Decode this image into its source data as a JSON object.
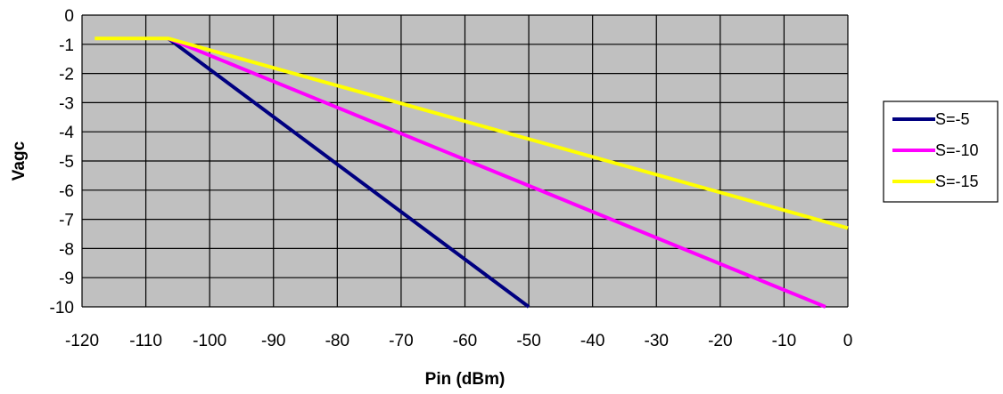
{
  "chart_data": {
    "type": "line",
    "title": "",
    "xlabel": "Pin (dBm)",
    "ylabel": "Vagc",
    "xlim": [
      -120,
      0
    ],
    "ylim": [
      -10,
      0
    ],
    "xticks": [
      -120,
      -110,
      -100,
      -90,
      -80,
      -70,
      -60,
      -50,
      -40,
      -30,
      -20,
      -10,
      0
    ],
    "yticks": [
      0,
      -1,
      -2,
      -3,
      -4,
      -5,
      -6,
      -7,
      -8,
      -9,
      -10
    ],
    "grid": true,
    "plot_background": "#c0c0c0",
    "legend_position": "right",
    "series": [
      {
        "name": "S=-5",
        "color": "#000080",
        "x": [
          -106.5,
          -50
        ],
        "y": [
          -0.8,
          -10
        ]
      },
      {
        "name": "S=-10",
        "color": "#ff00ff",
        "x": [
          -106.5,
          -3.5
        ],
        "y": [
          -0.8,
          -10
        ]
      },
      {
        "name": "S=-15",
        "color": "#ffff00",
        "x": [
          -118,
          -106.5,
          0
        ],
        "y": [
          -0.8,
          -0.8,
          -7.3
        ]
      }
    ]
  }
}
